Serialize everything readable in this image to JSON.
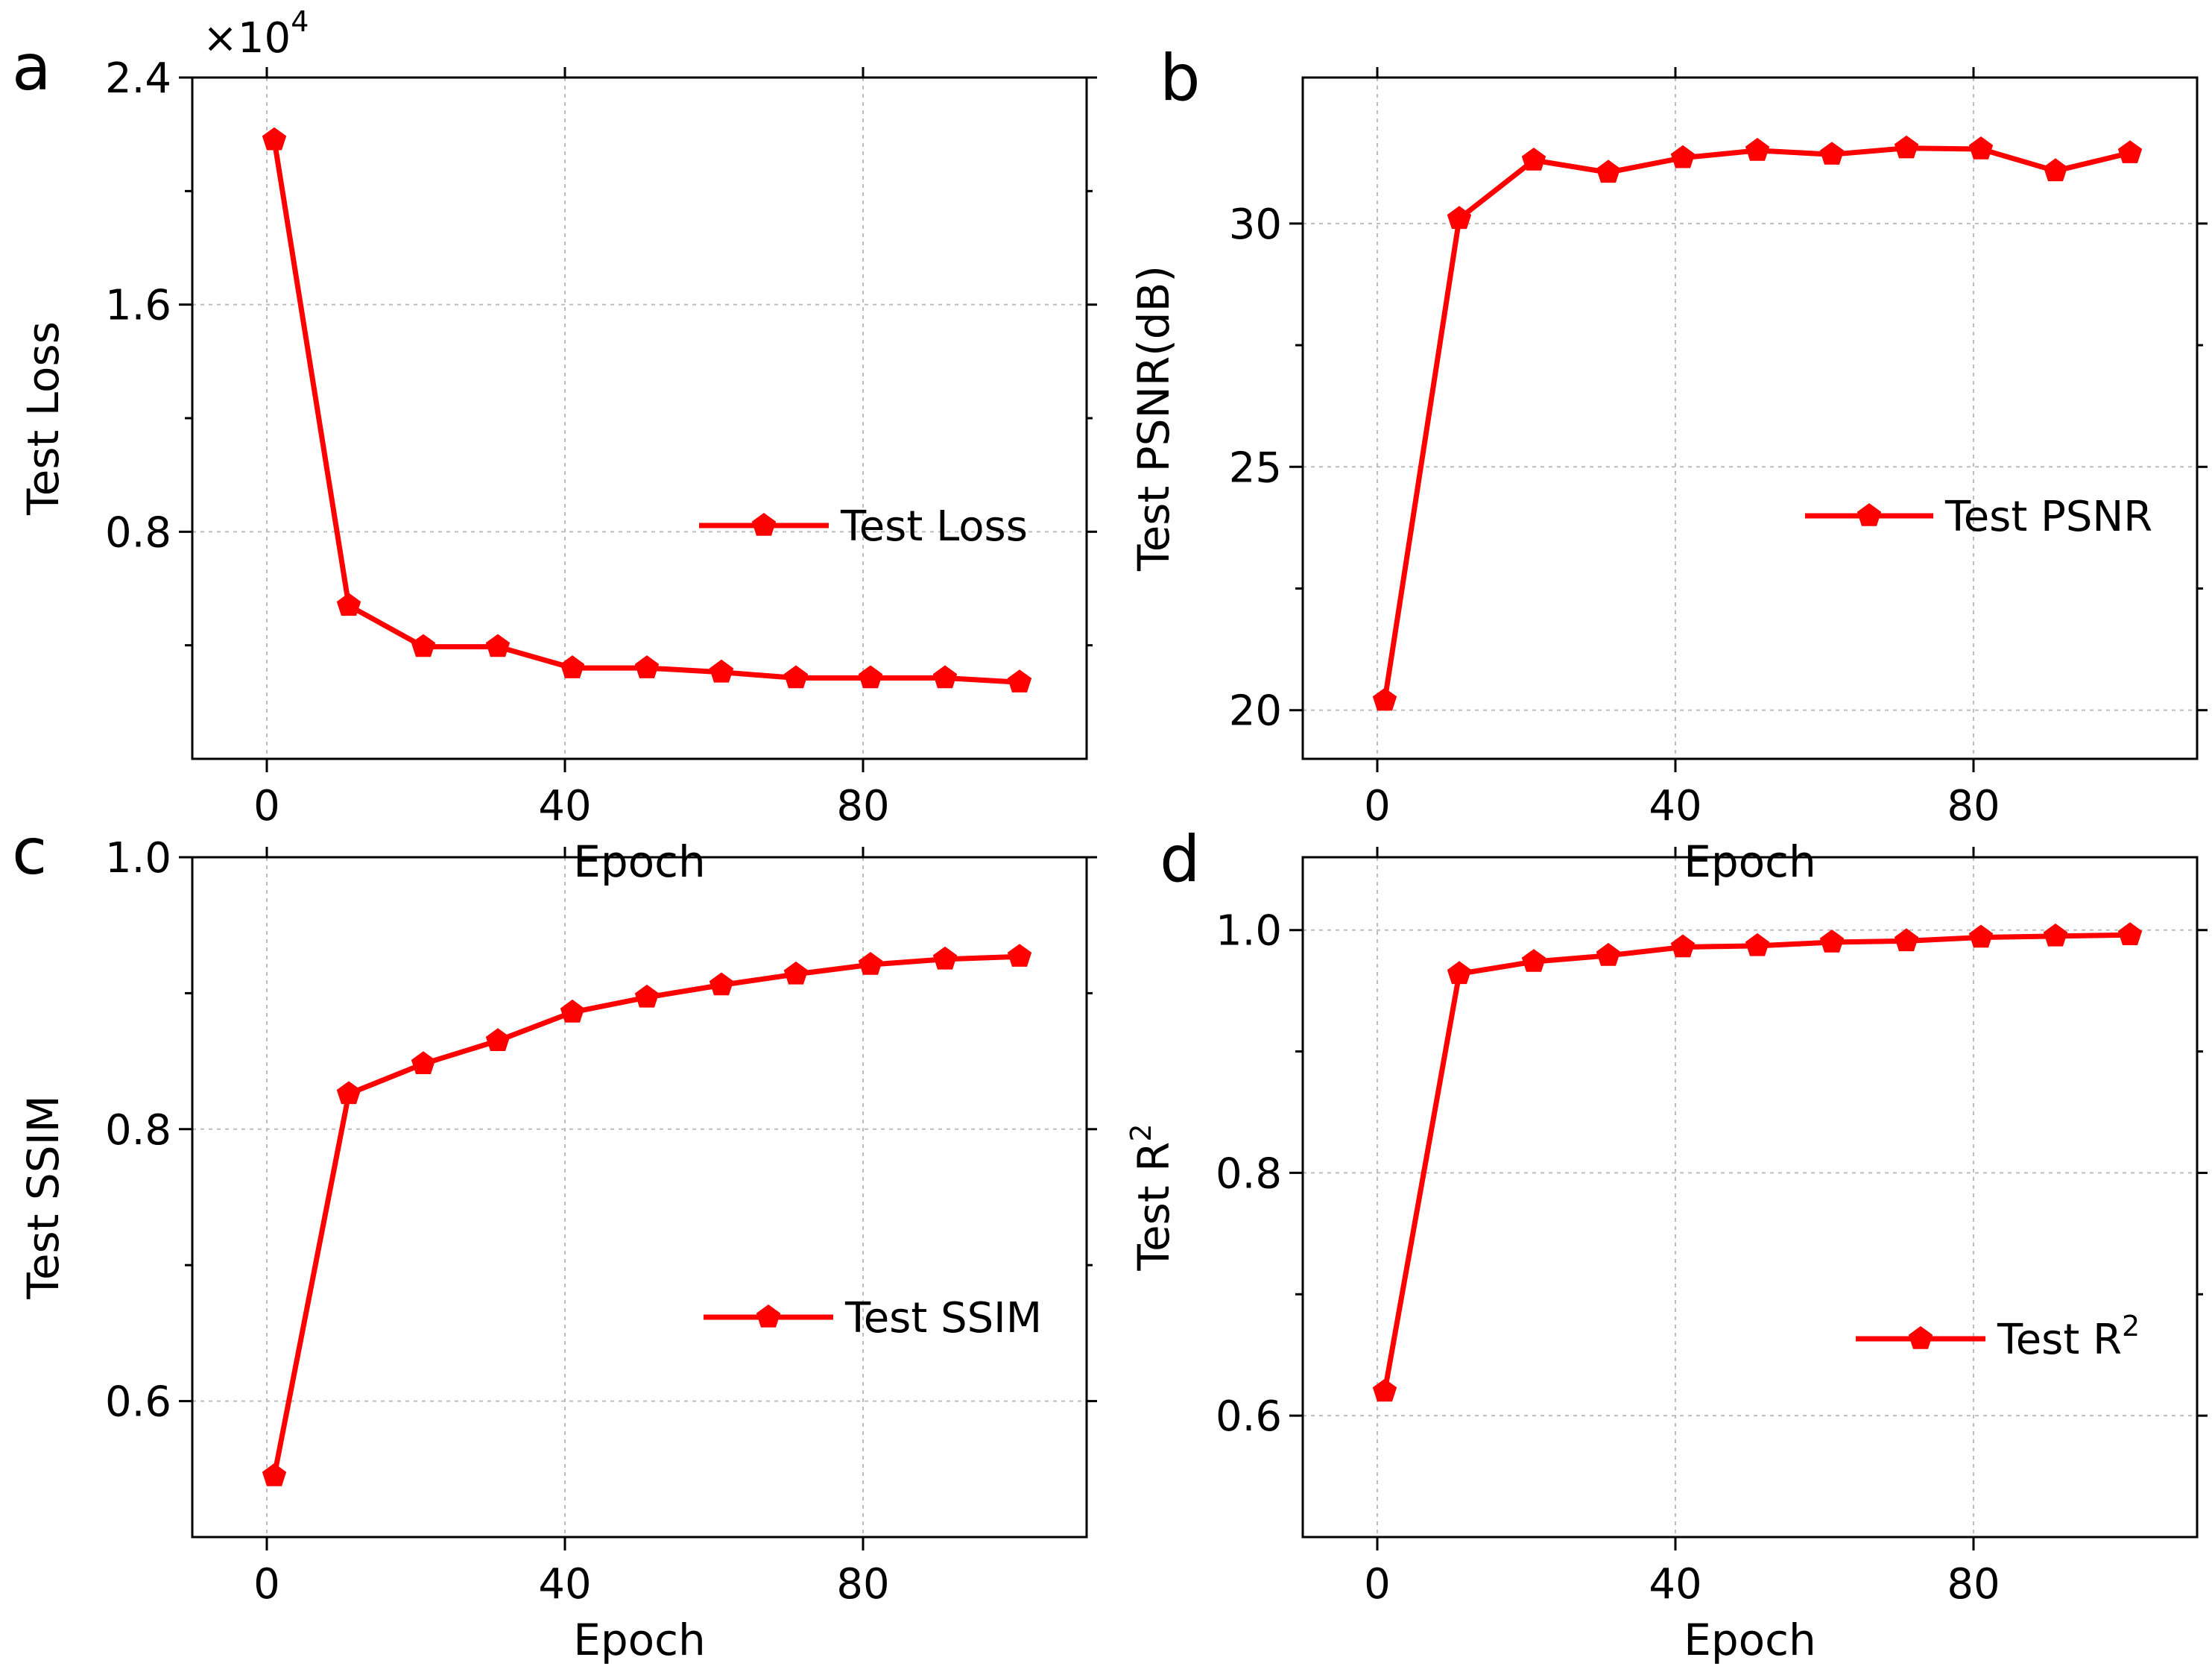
{
  "colors": {
    "series": "#ff0000",
    "axis": "#000000",
    "grid": "#bdbdbd",
    "background": "#ffffff"
  },
  "chart_data": [
    {
      "panel": "a",
      "type": "line",
      "x": [
        1,
        11,
        21,
        31,
        41,
        51,
        61,
        71,
        81,
        91,
        101
      ],
      "series": [
        {
          "name": "Test Loss",
          "values": [
            21800,
            5400,
            3950,
            3950,
            3200,
            3200,
            3050,
            2850,
            2850,
            2850,
            2700
          ]
        }
      ],
      "xlabel": "Epoch",
      "ylabel": "Test Loss",
      "xlim": [
        -10,
        110
      ],
      "ylim": [
        0,
        24000
      ],
      "xticks": [
        0,
        40,
        80
      ],
      "xtick_labels": [
        "0",
        "40",
        "80"
      ],
      "yticks": [
        8000,
        16000,
        24000
      ],
      "ytick_labels": [
        "0.8",
        "1.6",
        "2.4"
      ],
      "multiplier_base": "×10",
      "multiplier_exp": "4",
      "legend_label": "Test Loss",
      "legend_position": "center-right",
      "grid": true
    },
    {
      "panel": "b",
      "type": "line",
      "x": [
        1,
        11,
        21,
        31,
        41,
        51,
        61,
        71,
        81,
        91,
        101
      ],
      "series": [
        {
          "name": "Test PSNR",
          "values": [
            20.2,
            30.1,
            31.3,
            31.05,
            31.35,
            31.5,
            31.42,
            31.55,
            31.53,
            31.08,
            31.45
          ]
        }
      ],
      "xlabel": "Epoch",
      "ylabel": "Test PSNR(dB)",
      "xlim": [
        -10,
        110
      ],
      "ylim": [
        19,
        33
      ],
      "xticks": [
        0,
        40,
        80
      ],
      "xtick_labels": [
        "0",
        "40",
        "80"
      ],
      "yticks": [
        20,
        25,
        30
      ],
      "ytick_labels": [
        "20",
        "25",
        "30"
      ],
      "legend_label": "Test PSNR",
      "legend_position": "center-right",
      "grid": true
    },
    {
      "panel": "c",
      "type": "line",
      "x": [
        1,
        11,
        21,
        31,
        41,
        51,
        61,
        71,
        81,
        91,
        101
      ],
      "series": [
        {
          "name": "Test SSIM",
          "values": [
            0.545,
            0.826,
            0.848,
            0.865,
            0.886,
            0.897,
            0.906,
            0.914,
            0.921,
            0.925,
            0.927
          ]
        }
      ],
      "xlabel": "Epoch",
      "ylabel": "Test SSIM",
      "xlim": [
        -10,
        110
      ],
      "ylim": [
        0.5,
        1.0
      ],
      "xticks": [
        0,
        40,
        80
      ],
      "xtick_labels": [
        "0",
        "40",
        "80"
      ],
      "yticks": [
        0.6,
        0.8,
        1.0
      ],
      "ytick_labels": [
        "0.6",
        "0.8",
        "1.0"
      ],
      "legend_label": "Test SSIM",
      "legend_position": "center-right",
      "grid": true
    },
    {
      "panel": "d",
      "type": "line",
      "x": [
        1,
        11,
        21,
        31,
        41,
        51,
        61,
        71,
        81,
        91,
        101
      ],
      "series": [
        {
          "name": "Test R2",
          "values": [
            0.62,
            0.964,
            0.974,
            0.979,
            0.986,
            0.987,
            0.99,
            0.991,
            0.994,
            0.995,
            0.996
          ]
        }
      ],
      "xlabel": "Epoch",
      "ylabel": "Test R",
      "ylabel_sup": "2",
      "xlim": [
        -10,
        110
      ],
      "ylim": [
        0.5,
        1.06
      ],
      "xticks": [
        0,
        40,
        80
      ],
      "xtick_labels": [
        "0",
        "40",
        "80"
      ],
      "yticks": [
        0.6,
        0.8,
        1.0
      ],
      "ytick_labels": [
        "0.6",
        "0.8",
        "1.0"
      ],
      "legend_label": "Test R",
      "legend_sup": "2",
      "legend_position": "center-right",
      "grid": true
    }
  ]
}
